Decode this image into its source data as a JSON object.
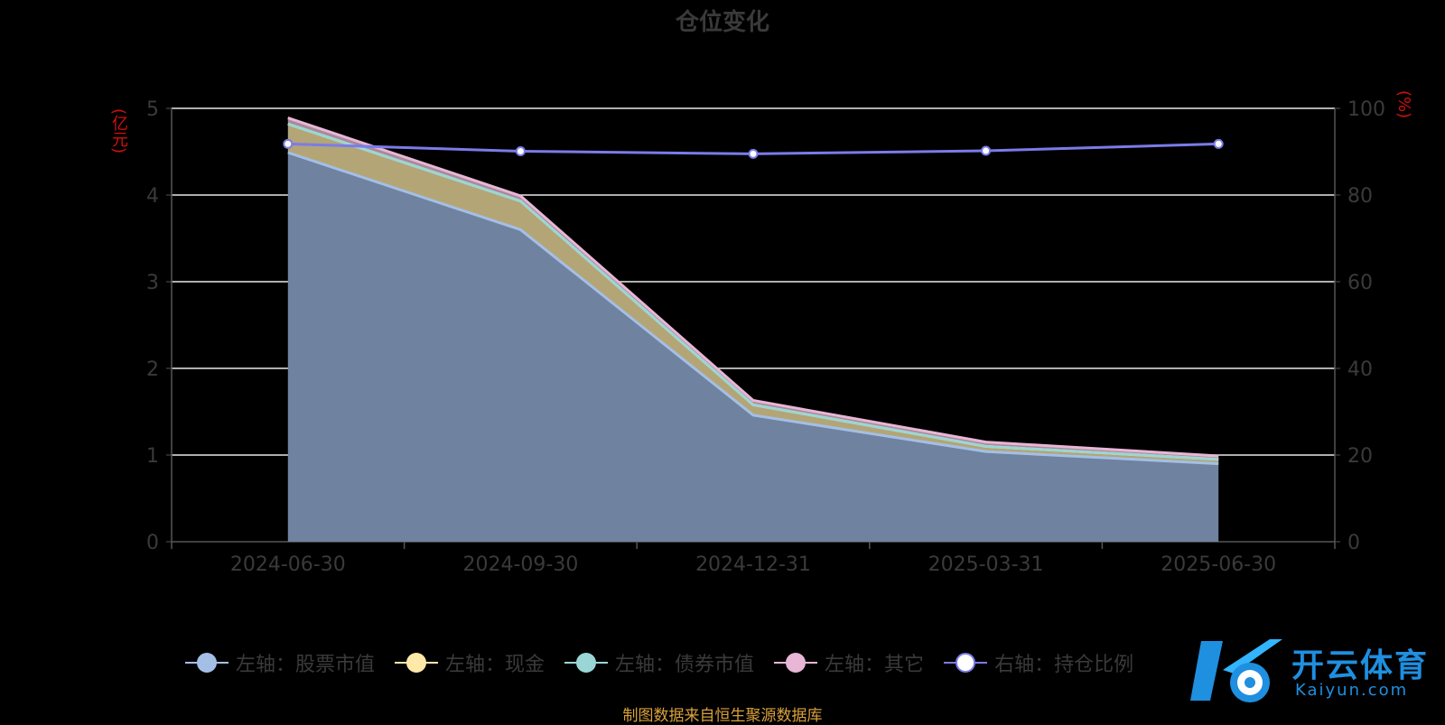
{
  "chart_data": {
    "type": "area",
    "title": "仓位变化",
    "left_axis_unit": "(亿元)",
    "right_axis_unit": "(%)",
    "categories": [
      "2024-06-30",
      "2024-09-30",
      "2024-12-31",
      "2025-03-31",
      "2025-06-30"
    ],
    "left_ylim": [
      0,
      5
    ],
    "left_ticks": [
      "0",
      "1",
      "2",
      "3",
      "4",
      "5"
    ],
    "right_ylim": [
      0,
      100
    ],
    "right_ticks": [
      "0",
      "20",
      "40",
      "60",
      "80",
      "100"
    ],
    "grid": true,
    "series": [
      {
        "name": "左轴：股票市值",
        "axis": "left",
        "stack": true,
        "values": [
          4.49,
          3.6,
          1.46,
          1.04,
          0.9
        ],
        "color": "#a4bfe6",
        "fill": "#6f82a0"
      },
      {
        "name": "左轴：现金",
        "axis": "left",
        "stack": true,
        "values": [
          0.33,
          0.33,
          0.12,
          0.06,
          0.05
        ],
        "color": "#ffe9a8",
        "fill": "#b3a576"
      },
      {
        "name": "左轴：债券市值",
        "axis": "left",
        "stack": true,
        "values": [
          0,
          0,
          0,
          0,
          0
        ],
        "color": "#9ad6d6",
        "fill": "#6f9f9f"
      },
      {
        "name": "左轴：其它",
        "axis": "left",
        "stack": true,
        "values": [
          0.07,
          0.06,
          0.05,
          0.05,
          0.04
        ],
        "color": "#e8b6d6",
        "fill": "#a88a9a"
      },
      {
        "name": "右轴：持仓比例",
        "axis": "right",
        "stack": false,
        "values": [
          91.8,
          90.1,
          89.5,
          90.2,
          91.8
        ],
        "color": "#7b7bea",
        "fill": "none"
      }
    ]
  },
  "legend": [
    {
      "label": "左轴：股票市值",
      "color": "#a4bfe6",
      "dot": "#a4bfe6"
    },
    {
      "label": "左轴：现金",
      "color": "#ffe9a8",
      "dot": "#ffe9a8"
    },
    {
      "label": "左轴：债券市值",
      "color": "#9ad6d6",
      "dot": "#9ad6d6"
    },
    {
      "label": "左轴：其它",
      "color": "#e8b6d6",
      "dot": "#e8b6d6"
    },
    {
      "label": "右轴：持仓比例",
      "color": "#7b7bea",
      "dot": "#ffffff"
    }
  ],
  "source_note": "制图数据来自恒生聚源数据库",
  "logo": {
    "name": "开云体育",
    "sub": "Kaiyun.com"
  }
}
